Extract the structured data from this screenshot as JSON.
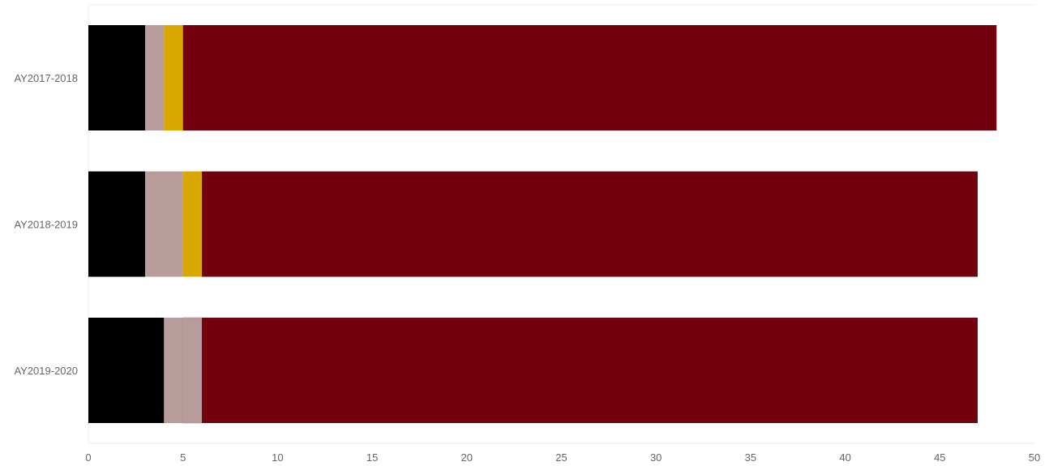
{
  "chart_data": {
    "type": "bar",
    "orientation": "horizontal",
    "stacked": true,
    "categories": [
      "AY2017-2018",
      "AY2018-2019",
      "AY2019-2020"
    ],
    "series": [
      {
        "color": "#000000",
        "values": [
          3,
          3,
          4
        ]
      },
      {
        "color": "#b89c9c",
        "values": [
          1,
          2,
          1
        ]
      },
      {
        "color": "#b89c9c",
        "values": [
          0,
          0,
          1
        ]
      },
      {
        "color": "#d9a800",
        "values": [
          1,
          1,
          0
        ]
      },
      {
        "color": "#72000d",
        "values": [
          43,
          41,
          41
        ]
      }
    ],
    "xlim": [
      0,
      50
    ],
    "xticks": [
      0,
      5,
      10,
      15,
      20,
      25,
      30,
      35,
      40,
      45,
      50
    ],
    "title": "",
    "xlabel": "",
    "ylabel": "",
    "grid": false,
    "legend": "none"
  }
}
